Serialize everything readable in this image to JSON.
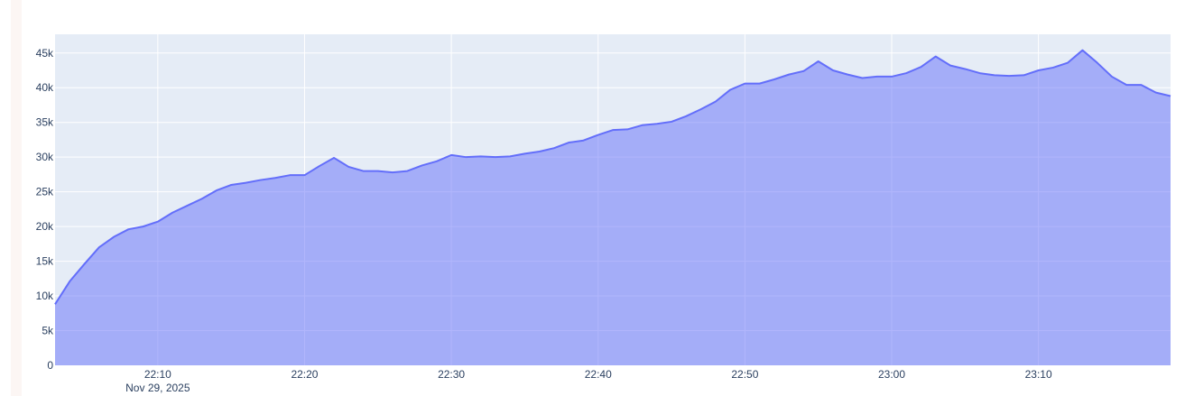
{
  "chart_data": {
    "type": "area",
    "title": "",
    "xlabel": "",
    "ylabel": "",
    "x_start": "2025-11-29 22:03",
    "x_end": "2025-11-29 23:19",
    "x_interval": "1 minute",
    "x_ticks": [
      "22:10",
      "22:20",
      "22:30",
      "22:40",
      "22:50",
      "23:00",
      "23:10"
    ],
    "x_tick_date_label": "Nov 29, 2025",
    "y_ticks": [
      "0",
      "5k",
      "10k",
      "15k",
      "20k",
      "25k",
      "30k",
      "35k",
      "40k",
      "45k"
    ],
    "ylim": [
      0,
      47700
    ],
    "grid": true,
    "colors": {
      "line": "#636efa",
      "fill": "#a3acf6",
      "plot_bg": "#e5ecf6",
      "grid": "#ffffff"
    },
    "values": [
      8800,
      12100,
      14600,
      17000,
      18500,
      19600,
      20000,
      20700,
      22000,
      23000,
      24000,
      25200,
      26000,
      26300,
      26700,
      27000,
      27400,
      27400,
      28700,
      29900,
      28600,
      28000,
      28000,
      27800,
      28000,
      28800,
      29400,
      30300,
      30000,
      30100,
      30000,
      30100,
      30500,
      30800,
      31300,
      32100,
      32400,
      33200,
      33900,
      34000,
      34600,
      34800,
      35100,
      35900,
      36900,
      38000,
      39700,
      40600,
      40600,
      41200,
      41900,
      42400,
      43800,
      42500,
      41900,
      41400,
      41600,
      41600,
      42100,
      43000,
      44500,
      43200,
      42700,
      42100,
      41800,
      41700,
      41800,
      42500,
      42900,
      43600,
      45400,
      43600,
      41600,
      40400,
      40400,
      39300,
      38800
    ]
  }
}
